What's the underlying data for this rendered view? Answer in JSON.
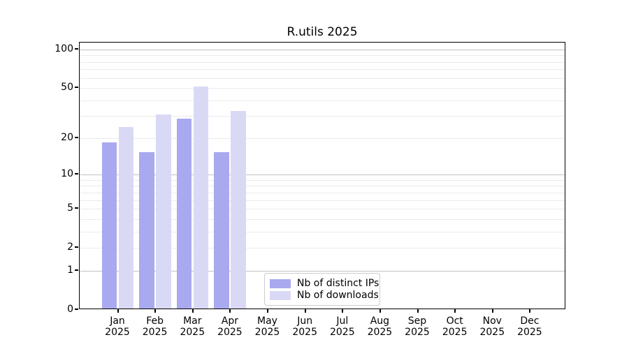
{
  "chart_data": {
    "type": "bar",
    "title": "R.utils 2025",
    "categories": [
      "Jan",
      "Feb",
      "Mar",
      "Apr",
      "May",
      "Jun",
      "Jul",
      "Aug",
      "Sep",
      "Oct",
      "Nov",
      "Dec"
    ],
    "x_tick_year": "2025",
    "series": [
      {
        "name": "Nb of distinct IPs",
        "color": "#a9a9f0",
        "values": [
          18,
          15,
          28,
          15,
          0,
          0,
          0,
          0,
          0,
          0,
          0,
          0
        ]
      },
      {
        "name": "Nb of downloads",
        "color": "#d9d9f6",
        "values": [
          24,
          30,
          50,
          32,
          0,
          0,
          0,
          0,
          0,
          0,
          0,
          0
        ]
      }
    ],
    "yscale": "log1p",
    "yticks": [
      0,
      1,
      2,
      5,
      10,
      20,
      50,
      100
    ],
    "ylim": [
      0,
      113
    ],
    "major_gridlines": [
      1,
      10,
      100
    ],
    "minor_gridlines": [
      2,
      3,
      4,
      5,
      6,
      7,
      8,
      9,
      20,
      30,
      40,
      50,
      60,
      70,
      80,
      90
    ],
    "grid": true,
    "legend_position": "lower center",
    "colors": {
      "axis": "#000000",
      "major_grid": "#c2c2c2",
      "minor_grid": "#ebebeb",
      "background": "#ffffff"
    }
  }
}
